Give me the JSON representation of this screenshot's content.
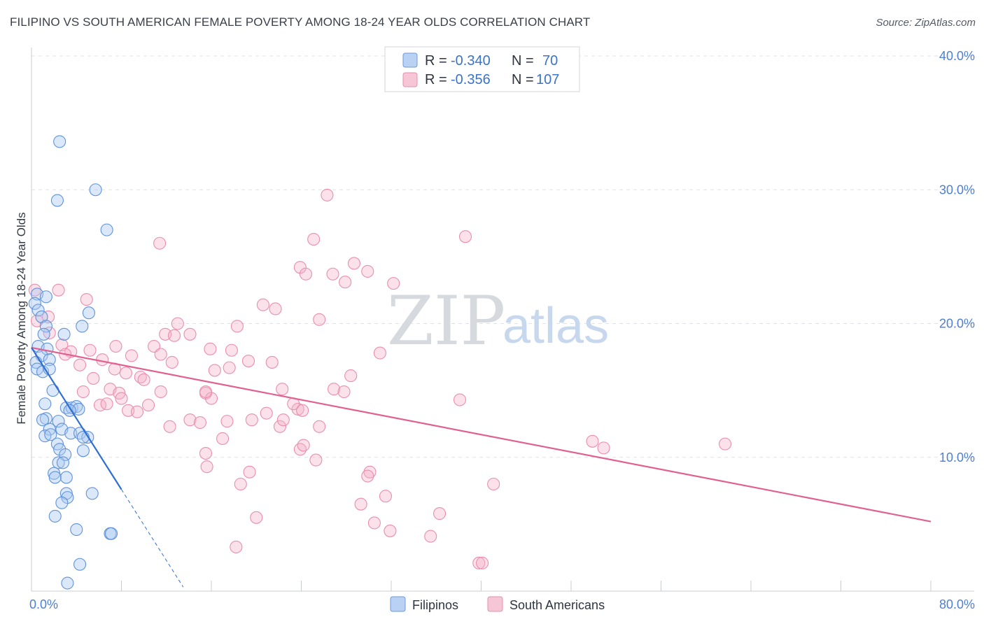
{
  "title": "FILIPINO VS SOUTH AMERICAN FEMALE POVERTY AMONG 18-24 YEAR OLDS CORRELATION CHART",
  "source": "Source: ZipAtlas.com",
  "watermark": {
    "zip": "ZIP",
    "atlas": "atlas"
  },
  "legend": {
    "rows": [
      {
        "r_label": "R =",
        "r_value": "-0.340",
        "n_label": "N =",
        "n_value": "70"
      },
      {
        "r_label": "R =",
        "r_value": "-0.356",
        "n_label": "N =",
        "n_value": "107"
      }
    ]
  },
  "colors": {
    "filipinos": "#5b8fd6",
    "south_americans": "#e87aa0",
    "fil_line": "#2f6fd0",
    "sa_line": "#e0608f"
  },
  "chart_data": {
    "type": "scatter",
    "title": "FILIPINO VS SOUTH AMERICAN FEMALE POVERTY AMONG 18-24 YEAR OLDS CORRELATION CHART",
    "xlabel": "",
    "ylabel": "Female Poverty Among 18-24 Year Olds",
    "xlim": [
      0,
      80
    ],
    "ylim": [
      0,
      40
    ],
    "x_tick_labels": [
      "0.0%",
      "80.0%"
    ],
    "y_ticks": [
      10,
      20,
      30,
      40
    ],
    "y_tick_labels": [
      "10.0%",
      "20.0%",
      "30.0%",
      "40.0%"
    ],
    "series": [
      {
        "name": "Filipinos",
        "r": -0.34,
        "n": 70,
        "trend": {
          "x0": 0.0,
          "y0": 18.2,
          "x1": 8.0,
          "y1": 7.6,
          "dash_to_x": 13.5,
          "dash_to_y": 0.3
        },
        "points": [
          [
            2.5,
            33.6
          ],
          [
            5.7,
            30.0
          ],
          [
            2.3,
            29.2
          ],
          [
            6.7,
            27.0
          ],
          [
            0.5,
            22.2
          ],
          [
            1.3,
            22.0
          ],
          [
            0.3,
            21.5
          ],
          [
            0.6,
            21.0
          ],
          [
            0.9,
            20.5
          ],
          [
            5.1,
            20.8
          ],
          [
            1.3,
            19.8
          ],
          [
            4.5,
            19.8
          ],
          [
            1.1,
            19.2
          ],
          [
            2.9,
            19.2
          ],
          [
            0.6,
            18.3
          ],
          [
            1.4,
            18.1
          ],
          [
            0.9,
            17.6
          ],
          [
            1.6,
            17.3
          ],
          [
            0.4,
            17.1
          ],
          [
            0.5,
            16.6
          ],
          [
            1.0,
            16.4
          ],
          [
            1.6,
            16.6
          ],
          [
            1.9,
            15.0
          ],
          [
            1.2,
            14.0
          ],
          [
            3.1,
            13.7
          ],
          [
            3.6,
            13.7
          ],
          [
            4.0,
            13.8
          ],
          [
            4.2,
            13.6
          ],
          [
            3.4,
            13.5
          ],
          [
            1.3,
            12.9
          ],
          [
            1.0,
            12.8
          ],
          [
            2.4,
            12.7
          ],
          [
            1.6,
            12.1
          ],
          [
            2.7,
            12.1
          ],
          [
            3.5,
            11.8
          ],
          [
            4.3,
            11.8
          ],
          [
            5.0,
            11.5
          ],
          [
            1.2,
            11.6
          ],
          [
            1.7,
            11.7
          ],
          [
            4.6,
            11.5
          ],
          [
            2.3,
            11.0
          ],
          [
            2.5,
            10.6
          ],
          [
            3.0,
            10.2
          ],
          [
            4.6,
            10.5
          ],
          [
            2.4,
            9.6
          ],
          [
            2.8,
            9.6
          ],
          [
            2.0,
            8.8
          ],
          [
            3.1,
            8.5
          ],
          [
            2.1,
            8.5
          ],
          [
            3.1,
            7.3
          ],
          [
            5.4,
            7.3
          ],
          [
            3.2,
            7.0
          ],
          [
            2.7,
            6.6
          ],
          [
            2.1,
            5.6
          ],
          [
            4.0,
            4.6
          ],
          [
            7.0,
            4.3
          ],
          [
            7.1,
            4.3
          ],
          [
            4.3,
            2.0
          ],
          [
            3.2,
            0.6
          ]
        ]
      },
      {
        "name": "South Americans",
        "r": -0.356,
        "n": 107,
        "trend": {
          "x0": 0.0,
          "y0": 18.2,
          "x1": 80.0,
          "y1": 5.2
        },
        "points": [
          [
            0.3,
            22.5
          ],
          [
            0.5,
            20.2
          ],
          [
            1.5,
            20.5
          ],
          [
            2.4,
            22.5
          ],
          [
            4.9,
            21.8
          ],
          [
            1.6,
            19.3
          ],
          [
            2.7,
            18.4
          ],
          [
            3.5,
            17.9
          ],
          [
            3.0,
            17.7
          ],
          [
            5.2,
            18.0
          ],
          [
            7.5,
            18.3
          ],
          [
            8.9,
            17.6
          ],
          [
            6.3,
            17.3
          ],
          [
            10.9,
            18.3
          ],
          [
            11.5,
            17.7
          ],
          [
            4.3,
            16.9
          ],
          [
            7.4,
            16.6
          ],
          [
            8.4,
            16.3
          ],
          [
            9.7,
            16.0
          ],
          [
            10.0,
            15.8
          ],
          [
            5.5,
            15.9
          ],
          [
            4.6,
            14.9
          ],
          [
            7.0,
            15.1
          ],
          [
            7.8,
            14.8
          ],
          [
            8.0,
            14.4
          ],
          [
            6.1,
            13.9
          ],
          [
            6.7,
            14.0
          ],
          [
            8.6,
            13.5
          ],
          [
            9.4,
            13.4
          ],
          [
            10.4,
            13.9
          ],
          [
            11.5,
            14.9
          ],
          [
            11.9,
            19.2
          ],
          [
            11.4,
            26.0
          ],
          [
            12.5,
            17.1
          ],
          [
            12.7,
            19.1
          ],
          [
            13.0,
            20.0
          ],
          [
            14.1,
            19.2
          ],
          [
            15.9,
            18.1
          ],
          [
            16.3,
            16.5
          ],
          [
            17.8,
            18.0
          ],
          [
            17.6,
            16.7
          ],
          [
            18.3,
            19.8
          ],
          [
            19.3,
            17.2
          ],
          [
            20.6,
            21.4
          ],
          [
            21.4,
            17.1
          ],
          [
            21.7,
            21.1
          ],
          [
            22.3,
            15.1
          ],
          [
            23.9,
            24.2
          ],
          [
            24.4,
            23.7
          ],
          [
            25.1,
            26.3
          ],
          [
            25.6,
            20.3
          ],
          [
            26.3,
            29.6
          ],
          [
            26.8,
            23.7
          ],
          [
            27.9,
            23.1
          ],
          [
            28.7,
            24.5
          ],
          [
            29.9,
            23.9
          ],
          [
            32.2,
            23.0
          ],
          [
            31.0,
            17.8
          ],
          [
            26.9,
            15.1
          ],
          [
            27.8,
            14.9
          ],
          [
            28.4,
            16.1
          ],
          [
            38.6,
            26.5
          ],
          [
            14.1,
            12.8
          ],
          [
            15.0,
            12.6
          ],
          [
            12.3,
            12.3
          ],
          [
            15.5,
            14.8
          ],
          [
            16.0,
            14.4
          ],
          [
            15.5,
            14.9
          ],
          [
            17.4,
            12.7
          ],
          [
            17.0,
            11.4
          ],
          [
            19.6,
            12.8
          ],
          [
            20.9,
            13.3
          ],
          [
            22.1,
            12.3
          ],
          [
            23.7,
            13.6
          ],
          [
            22.4,
            12.8
          ],
          [
            23.3,
            14.0
          ],
          [
            24.1,
            13.5
          ],
          [
            25.6,
            12.3
          ],
          [
            15.5,
            10.3
          ],
          [
            15.6,
            9.3
          ],
          [
            19.4,
            8.9
          ],
          [
            18.6,
            8.0
          ],
          [
            23.9,
            10.6
          ],
          [
            24.2,
            10.9
          ],
          [
            25.3,
            9.8
          ],
          [
            30.1,
            8.9
          ],
          [
            29.9,
            8.6
          ],
          [
            29.3,
            6.5
          ],
          [
            30.5,
            5.1
          ],
          [
            31.5,
            7.1
          ],
          [
            31.9,
            4.5
          ],
          [
            20.0,
            5.5
          ],
          [
            18.2,
            3.3
          ],
          [
            35.5,
            4.1
          ],
          [
            36.3,
            5.8
          ],
          [
            38.1,
            14.3
          ],
          [
            41.1,
            8.0
          ],
          [
            49.9,
            11.2
          ],
          [
            50.9,
            10.7
          ],
          [
            61.7,
            11.0
          ],
          [
            39.8,
            2.1
          ],
          [
            40.1,
            2.1
          ]
        ]
      }
    ]
  },
  "bottom_legend": [
    "Filipinos",
    "South Americans"
  ]
}
